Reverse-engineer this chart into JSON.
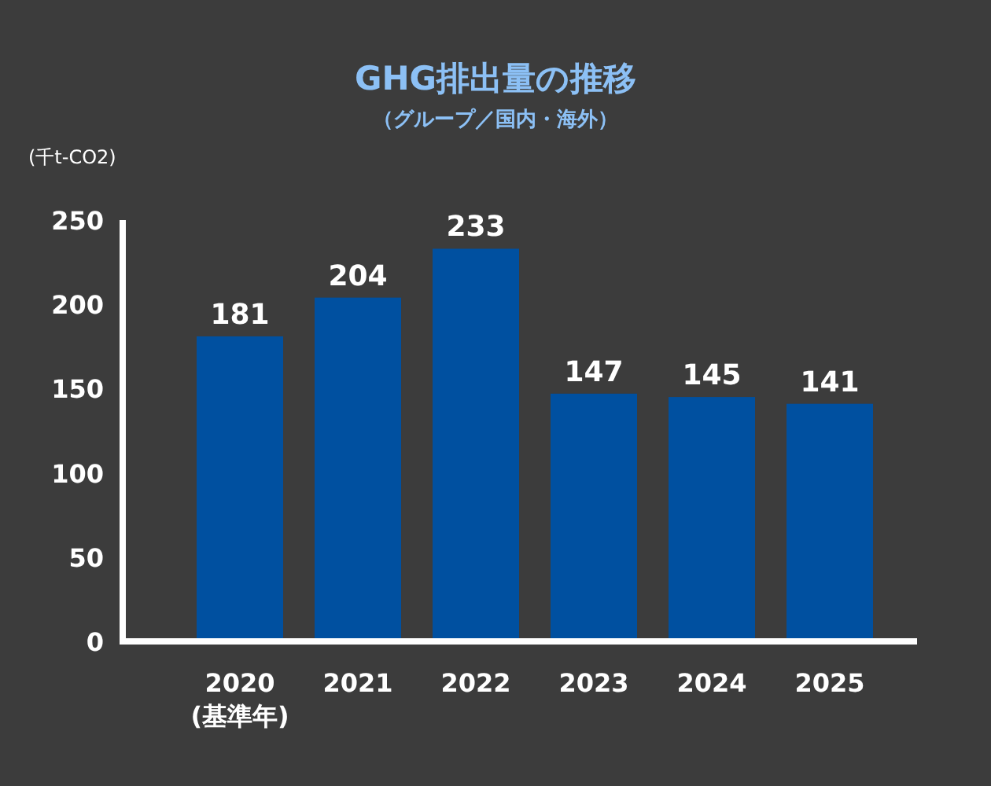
{
  "chart_data": {
    "type": "bar",
    "title": "GHG排出量の推移",
    "subtitle": "（グループ／国内・海外）",
    "ylabel": "(千t-CO2)",
    "categories": [
      "2020\n(基準年)",
      "2021",
      "2022",
      "2023",
      "2024",
      "2025"
    ],
    "values": [
      181,
      204,
      233,
      147,
      145,
      141
    ],
    "color": "#0050a0",
    "ylim": [
      0,
      250
    ],
    "yticks": [
      0,
      50,
      100,
      150,
      200,
      250
    ],
    "data_labels": true
  }
}
